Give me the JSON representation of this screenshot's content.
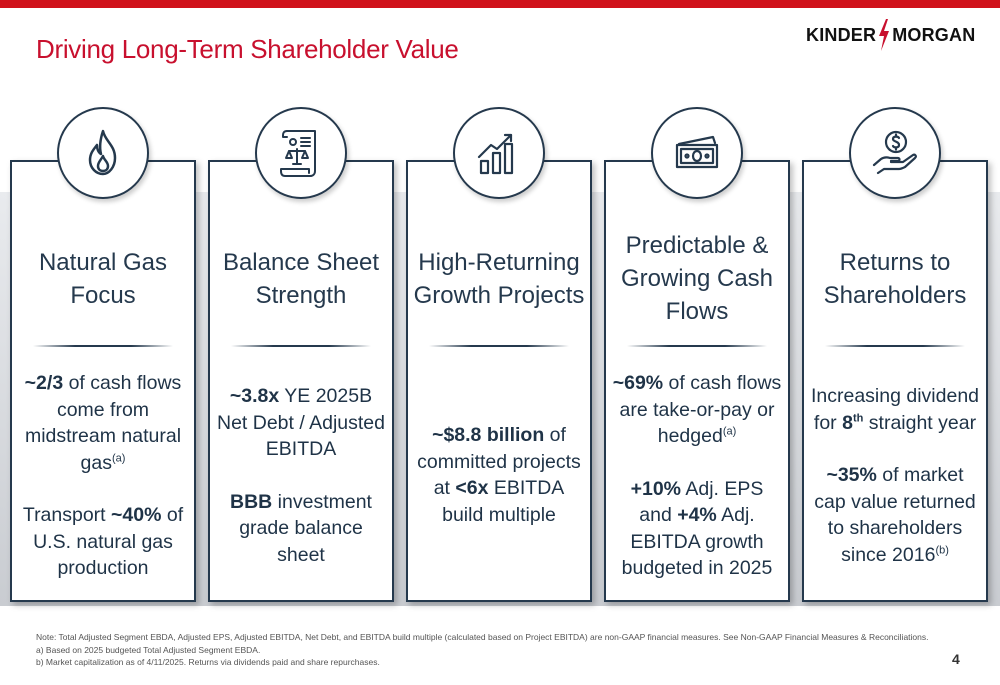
{
  "header": {
    "title": "Driving Long-Term Shareholder Value",
    "logo_left": "KINDER",
    "logo_right": "MORGAN"
  },
  "pillars": [
    {
      "icon": "flame-icon",
      "title_lines": [
        "Natural Gas",
        "Focus"
      ],
      "body": {
        "p1_bold": "~2/3",
        "p1_a": " of cash flows come from midstream natural gas",
        "p1_sup": "(a)",
        "p2_a": "Transport ",
        "p2_bold": "~40%",
        "p2_b": " of U.S. natural gas production"
      }
    },
    {
      "icon": "document-scales-icon",
      "title_lines": [
        "Balance Sheet",
        "Strength"
      ],
      "body": {
        "p1_bold": "~3.8x",
        "p1_a": " YE 2025B Net Debt / Adjusted EBITDA",
        "p2_bold": "BBB",
        "p2_a": " investment grade balance sheet"
      }
    },
    {
      "icon": "bar-chart-growth-icon",
      "title_lines": [
        "High-Returning",
        "Growth Projects"
      ],
      "body": {
        "p1_bold": "~$8.8 billion",
        "p1_a": " of committed projects at ",
        "p1_bold2": "<6x",
        "p1_b": " EBITDA build multiple"
      }
    },
    {
      "icon": "cash-bills-icon",
      "title_lines": [
        "Predictable &",
        "Growing Cash",
        "Flows"
      ],
      "body": {
        "p1_bold": "~69%",
        "p1_a": " of cash flows are take-or-pay or hedged",
        "p1_sup": "(a)",
        "p2_bold": "+10%",
        "p2_a": " Adj. EPS and ",
        "p2_bold2": "+4%",
        "p2_b": " Adj. EBITDA growth budgeted in 2025"
      }
    },
    {
      "icon": "hand-dollar-icon",
      "title_lines": [
        "Returns to",
        "Shareholders"
      ],
      "body": {
        "p1_a": "Increasing dividend for ",
        "p1_bold": "8",
        "p1_sup_bold": "th",
        "p1_b": " straight year",
        "p2_bold": "~35%",
        "p2_a": " of market cap value returned to shareholders since 2016",
        "p2_sup": "(b)"
      }
    }
  ],
  "footnotes": {
    "note": "Note: Total Adjusted Segment EBDA, Adjusted EPS, Adjusted EBITDA, Net Debt, and EBITDA build multiple (calculated based on Project EBITDA) are non-GAAP financial measures. See Non-GAAP Financial Measures & Reconciliations.",
    "a": "a)   Based on 2025 budgeted Total Adjusted Segment EBDA.",
    "b": "b)   Market capitalization as of 4/11/2025. Returns via dividends paid and share repurchases."
  },
  "page_number": "4",
  "colors": {
    "accent_red": "#c8102e",
    "navy": "#25394d",
    "band_gray": "#d4d7db"
  }
}
